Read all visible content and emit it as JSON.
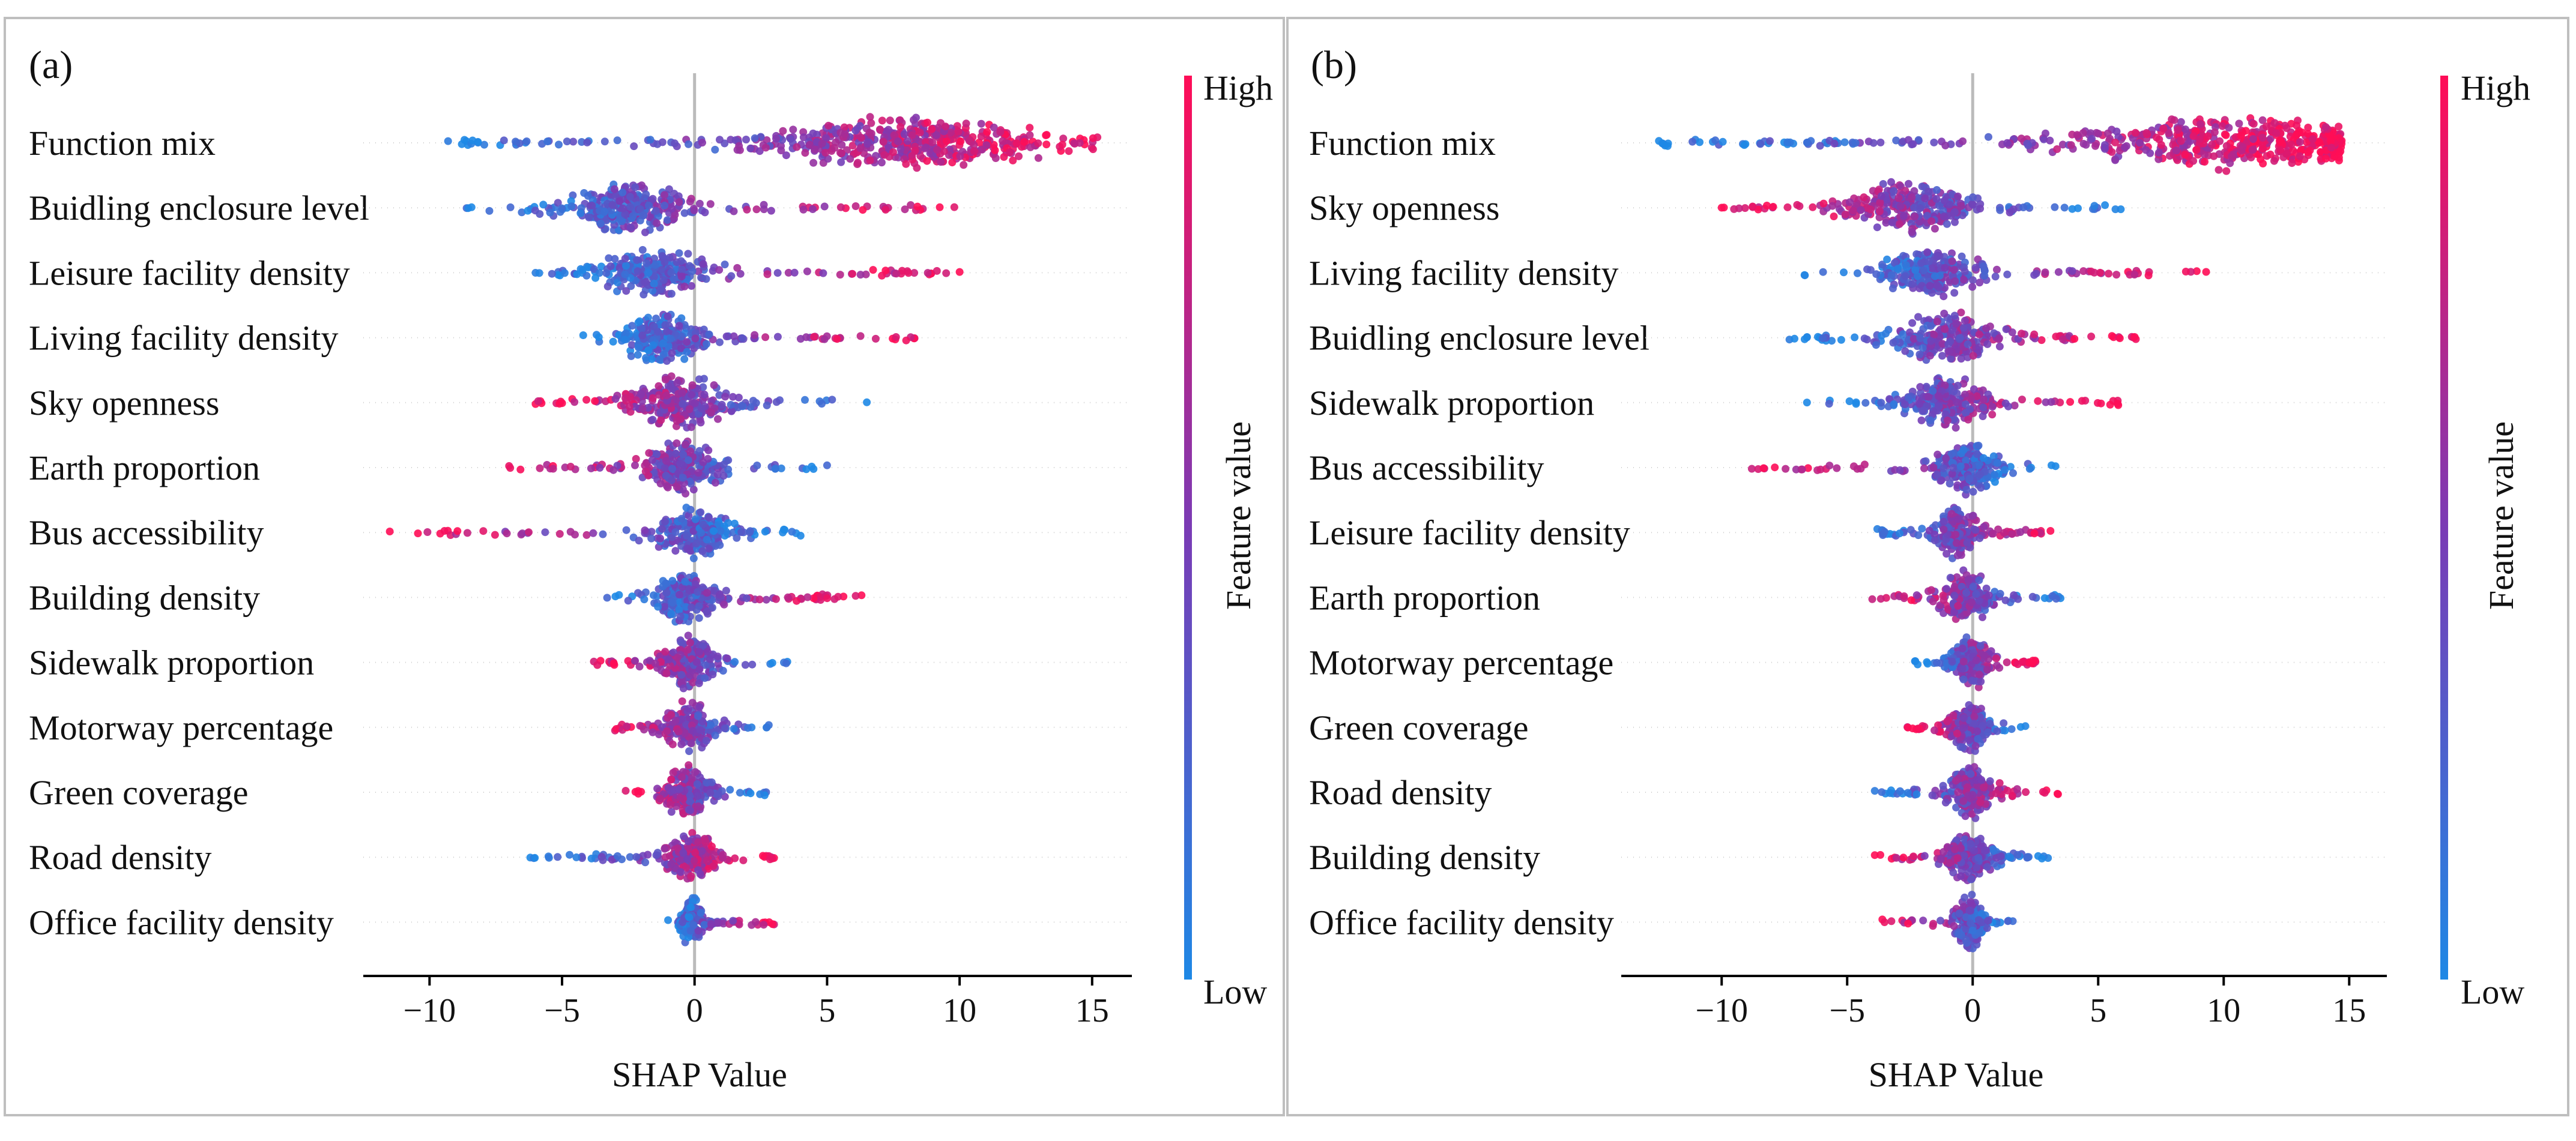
{
  "colors": {
    "high": "#ff0d57",
    "low": "#1e88e5",
    "axis": "#000000",
    "zero_line": "#bbbbbb",
    "border": "#bfbfbf"
  },
  "chart_data": [
    {
      "type": "scatter",
      "subtype": "shap_beeswarm",
      "panel_label": "(a)",
      "xlabel": "SHAP Value",
      "xlim": [
        -12.5,
        16.5
      ],
      "xticks": [
        -10,
        -5,
        0,
        5,
        10,
        15
      ],
      "xtick_labels": [
        "−10",
        "−5",
        "0",
        "5",
        "10",
        "15"
      ],
      "colorbar": {
        "title": "Feature value",
        "high_label": "High",
        "low_label": "Low"
      },
      "features": [
        {
          "name": "Function mix",
          "min": -9.3,
          "max": 15.2,
          "mode": 8.0,
          "sd": 5.2,
          "low_side": "left"
        },
        {
          "name": "Buidling enclosure level",
          "min": -8.6,
          "max": 9.8,
          "mode": -2.5,
          "sd": 2.3,
          "low_side": "left"
        },
        {
          "name": "Leisure facility density",
          "min": -6.0,
          "max": 10.0,
          "mode": -1.5,
          "sd": 1.9,
          "low_side": "left"
        },
        {
          "name": "Living facility density",
          "min": -4.2,
          "max": 8.3,
          "mode": -1.3,
          "sd": 1.6,
          "low_side": "left"
        },
        {
          "name": "Sky openness",
          "min": -6.0,
          "max": 6.5,
          "mode": -0.5,
          "sd": 1.8,
          "low_side": "right"
        },
        {
          "name": "Earth proportion",
          "min": -7.0,
          "max": 5.0,
          "mode": -0.4,
          "sd": 1.5,
          "low_side": "right"
        },
        {
          "name": "Bus accessibility",
          "min": -11.5,
          "max": 4.0,
          "mode": 0.0,
          "sd": 1.5,
          "low_side": "right"
        },
        {
          "name": "Building density",
          "min": -3.3,
          "max": 6.3,
          "mode": -0.4,
          "sd": 1.2,
          "low_side": "left"
        },
        {
          "name": "Sidewalk proportion",
          "min": -3.8,
          "max": 3.5,
          "mode": -0.2,
          "sd": 1.0,
          "low_side": "right"
        },
        {
          "name": "Motorway percentage",
          "min": -3.0,
          "max": 2.8,
          "mode": -0.2,
          "sd": 0.9,
          "low_side": "right"
        },
        {
          "name": "Green coverage",
          "min": -2.6,
          "max": 2.7,
          "mode": -0.2,
          "sd": 0.9,
          "low_side": "right"
        },
        {
          "name": "Road density",
          "min": -6.2,
          "max": 3.0,
          "mode": -0.1,
          "sd": 1.0,
          "low_side": "left"
        },
        {
          "name": "Office facility density",
          "min": -1.0,
          "max": 3.0,
          "mode": -0.1,
          "sd": 0.4,
          "low_side": "left"
        }
      ]
    },
    {
      "type": "scatter",
      "subtype": "shap_beeswarm",
      "panel_label": "(b)",
      "xlabel": "SHAP Value",
      "xlim": [
        -14.0,
        16.5
      ],
      "xticks": [
        -10,
        -5,
        0,
        5,
        10,
        15
      ],
      "xtick_labels": [
        "−10",
        "−5",
        "0",
        "5",
        "10",
        "15"
      ],
      "colorbar": {
        "title": "Feature value",
        "high_label": "High",
        "low_label": "Low"
      },
      "features": [
        {
          "name": "Function mix",
          "min": -12.5,
          "max": 14.7,
          "mode": 10.5,
          "sd": 5.8,
          "low_side": "left"
        },
        {
          "name": "Sky openness",
          "min": -10.0,
          "max": 5.9,
          "mode": -2.5,
          "sd": 2.3,
          "low_side": "right"
        },
        {
          "name": "Living facility density",
          "min": -6.7,
          "max": 9.3,
          "mode": -1.5,
          "sd": 1.8,
          "low_side": "left"
        },
        {
          "name": "Buidling enclosure level",
          "min": -7.3,
          "max": 6.5,
          "mode": -1.0,
          "sd": 1.9,
          "low_side": "left"
        },
        {
          "name": "Sidewalk proportion",
          "min": -6.6,
          "max": 5.8,
          "mode": -1.0,
          "sd": 1.6,
          "low_side": "left"
        },
        {
          "name": "Bus accessibility",
          "min": -8.8,
          "max": 3.3,
          "mode": -0.3,
          "sd": 1.3,
          "low_side": "right"
        },
        {
          "name": "Leisure facility density",
          "min": -3.8,
          "max": 3.1,
          "mode": -0.7,
          "sd": 0.9,
          "low_side": "left"
        },
        {
          "name": "Earth proportion",
          "min": -4.0,
          "max": 3.5,
          "mode": -0.3,
          "sd": 1.0,
          "low_side": "right"
        },
        {
          "name": "Motorway percentage",
          "min": -2.3,
          "max": 2.5,
          "mode": 0.0,
          "sd": 0.8,
          "low_side": "left"
        },
        {
          "name": "Green coverage",
          "min": -2.6,
          "max": 2.1,
          "mode": -0.1,
          "sd": 0.8,
          "low_side": "right"
        },
        {
          "name": "Road density",
          "min": -3.9,
          "max": 3.4,
          "mode": -0.1,
          "sd": 0.9,
          "low_side": "left"
        },
        {
          "name": "Building density",
          "min": -3.9,
          "max": 3.0,
          "mode": -0.1,
          "sd": 0.9,
          "low_side": "right"
        },
        {
          "name": "Office facility density",
          "min": -3.6,
          "max": 1.6,
          "mode": -0.1,
          "sd": 0.6,
          "low_side": "right"
        }
      ]
    }
  ]
}
